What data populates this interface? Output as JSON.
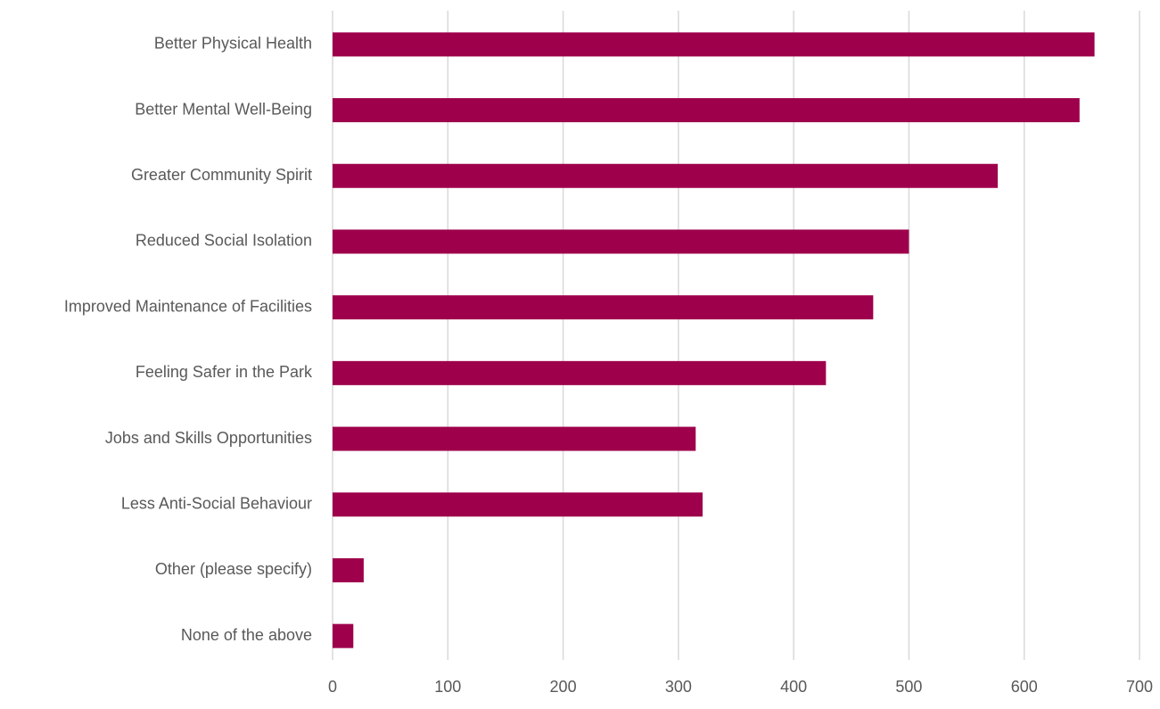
{
  "chart_data": {
    "type": "bar",
    "orientation": "horizontal",
    "title": "",
    "xlabel": "",
    "ylabel": "",
    "categories": [
      "Better Physical Health",
      "Better Mental Well-Being",
      "Greater Community Spirit",
      "Reduced Social Isolation",
      "Improved Maintenance of Facilities",
      "Feeling Safer in the Park",
      "Jobs and Skills Opportunities",
      "Less Anti-Social Behaviour",
      "Other (please specify)",
      "None of the above"
    ],
    "values": [
      661,
      648,
      577,
      500,
      469,
      428,
      315,
      321,
      27,
      18
    ],
    "xlim": [
      0,
      700
    ],
    "xticks": [
      0,
      100,
      200,
      300,
      400,
      500,
      600,
      700
    ],
    "grid": "vertical",
    "legend": "none",
    "colors": {
      "bar": "#9e004b",
      "grid": "#d9d9d9",
      "text": "#595959"
    }
  }
}
